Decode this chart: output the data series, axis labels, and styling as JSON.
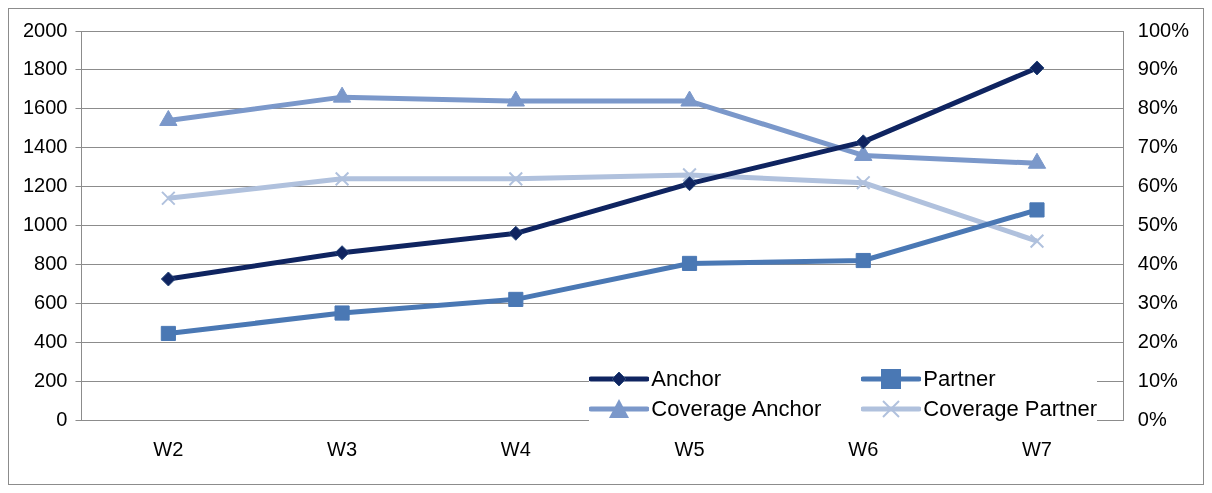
{
  "chart_data": {
    "type": "line",
    "categories": [
      "W2",
      "W3",
      "W4",
      "W5",
      "W6",
      "W7"
    ],
    "series": [
      {
        "name": "Anchor",
        "color": "#0f2460",
        "marker": "diamond",
        "values": [
          725,
          860,
          960,
          1215,
          1430,
          1810
        ]
      },
      {
        "name": "Partner",
        "color": "#4a78b4",
        "marker": "square",
        "values": [
          445,
          550,
          620,
          805,
          820,
          1080
        ]
      },
      {
        "name": "Coverage Anchor",
        "color": "#7b98ca",
        "marker": "triangle",
        "axis": "y2",
        "values": [
          77,
          83,
          82,
          82,
          68,
          66
        ]
      },
      {
        "name": "Coverage Partner",
        "color": "#b0c1dd",
        "marker": "cross",
        "axis": "y2",
        "values": [
          57,
          62,
          62,
          63,
          61,
          46
        ]
      }
    ],
    "ylim": [
      0,
      2000
    ],
    "yticks": [
      0,
      200,
      400,
      600,
      800,
      1000,
      1200,
      1400,
      1600,
      1800,
      2000
    ],
    "y2lim": [
      0,
      100
    ],
    "y2ticks": [
      {
        "value": 0,
        "label": "0%"
      },
      {
        "value": 10,
        "label": "10%"
      },
      {
        "value": 20,
        "label": "20%"
      },
      {
        "value": 30,
        "label": "30%"
      },
      {
        "value": 40,
        "label": "40%"
      },
      {
        "value": 50,
        "label": "50%"
      },
      {
        "value": 60,
        "label": "60%"
      },
      {
        "value": 70,
        "label": "70%"
      },
      {
        "value": 80,
        "label": "80%"
      },
      {
        "value": 90,
        "label": "90%"
      },
      {
        "value": 100,
        "label": "100%"
      }
    ],
    "grid": "y",
    "legend": "bottom right",
    "line_style": "solid"
  }
}
